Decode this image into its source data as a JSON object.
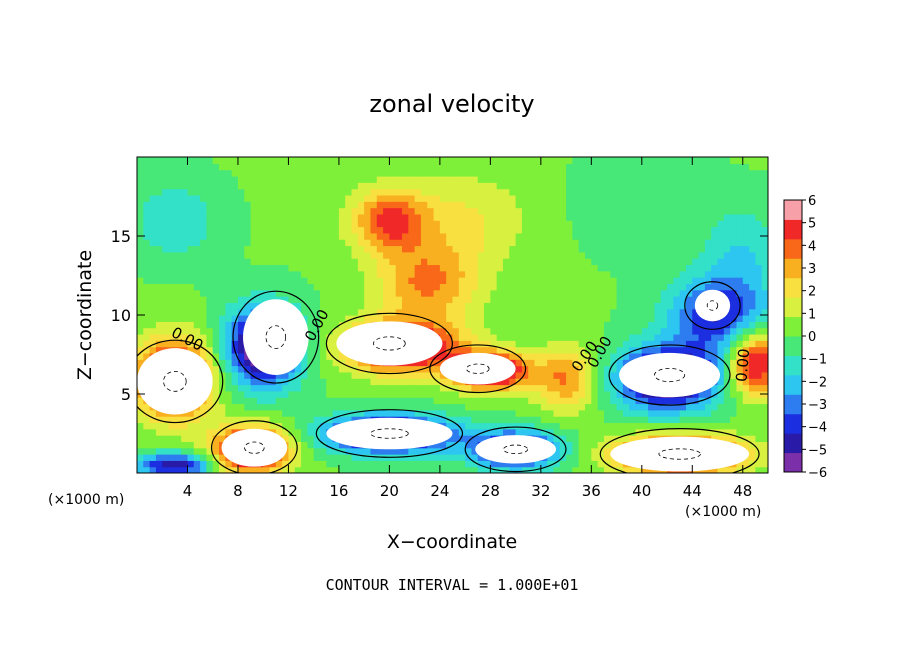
{
  "chart_data": {
    "type": "heatmap",
    "title": "zonal velocity",
    "xlabel": "X−coordinate",
    "ylabel": "Z−coordinate",
    "x_unit": "(×1000 m)",
    "z_unit": "(×1000 m)",
    "xlim": [
      0,
      50
    ],
    "ylim": [
      0,
      20
    ],
    "x_ticks": [
      4,
      8,
      12,
      16,
      20,
      24,
      28,
      32,
      36,
      40,
      44,
      48
    ],
    "y_ticks": [
      5,
      10,
      15
    ],
    "colorbar": {
      "ticks": [
        6,
        5,
        4,
        3,
        2,
        1,
        0,
        -1,
        -2,
        -3,
        -4,
        -5,
        -6
      ],
      "range": [
        -6,
        6
      ]
    },
    "contour_labels": [
      "0.00",
      "0.00",
      "0.00",
      "0.00",
      "0.00"
    ],
    "footer": "CONTOUR INTERVAL = 1.000E+01",
    "field_blobs": [
      {
        "x": 20,
        "z": 16,
        "v": 5,
        "sx": 3.0,
        "sz": 2.0
      },
      {
        "x": 23,
        "z": 12,
        "v": 4,
        "sx": 4.0,
        "sz": 2.5
      },
      {
        "x": 26,
        "z": 16,
        "v": 2,
        "sx": 5.0,
        "sz": 3.0
      },
      {
        "x": 3,
        "z": 16,
        "v": -2,
        "sx": 3.5,
        "sz": 2.5
      },
      {
        "x": 40,
        "z": 17,
        "v": -1,
        "sx": 5.0,
        "sz": 3.0
      },
      {
        "x": 46,
        "z": 10,
        "v": -5,
        "sx": 4.0,
        "sz": 2.5
      },
      {
        "x": 48,
        "z": 14,
        "v": -2,
        "sx": 3.0,
        "sz": 3.0
      },
      {
        "x": 10,
        "z": 8,
        "v": -8,
        "sx": 3.0,
        "sz": 2.5
      },
      {
        "x": 3,
        "z": 6,
        "v": 8,
        "sx": 3.0,
        "sz": 2.5
      },
      {
        "x": 21,
        "z": 8,
        "v": 8,
        "sx": 4.5,
        "sz": 1.6
      },
      {
        "x": 28,
        "z": 6.5,
        "v": 8,
        "sx": 3.0,
        "sz": 1.2
      },
      {
        "x": 34,
        "z": 6,
        "v": 4,
        "sx": 2.5,
        "sz": 2.0
      },
      {
        "x": 42,
        "z": 6,
        "v": -8,
        "sx": 4.0,
        "sz": 2.0
      },
      {
        "x": 49,
        "z": 7,
        "v": 7,
        "sx": 2.0,
        "sz": 2.0
      },
      {
        "x": 20,
        "z": 2.5,
        "v": -8,
        "sx": 5.0,
        "sz": 1.2
      },
      {
        "x": 30,
        "z": 1.5,
        "v": -7,
        "sx": 3.5,
        "sz": 1.2
      },
      {
        "x": 9,
        "z": 1.5,
        "v": 8,
        "sx": 3.0,
        "sz": 1.5
      },
      {
        "x": 43,
        "z": 1.2,
        "v": 8,
        "sx": 5.0,
        "sz": 1.2
      },
      {
        "x": 3,
        "z": 0.5,
        "v": -6,
        "sx": 3.0,
        "sz": 0.8
      }
    ],
    "nan_regions": [
      {
        "cx": 11,
        "cz": 8.6,
        "rx": 2.6,
        "rz": 2.4
      },
      {
        "cx": 3,
        "cz": 5.8,
        "rx": 3.0,
        "rz": 2.1
      },
      {
        "cx": 20,
        "cz": 8.2,
        "rx": 4.2,
        "rz": 1.4
      },
      {
        "cx": 27,
        "cz": 6.6,
        "rx": 3.0,
        "rz": 1.0
      },
      {
        "cx": 42.2,
        "cz": 6.2,
        "rx": 4.0,
        "rz": 1.4
      },
      {
        "cx": 45.6,
        "cz": 10.6,
        "rx": 1.4,
        "rz": 1.0
      },
      {
        "cx": 20,
        "cz": 2.5,
        "rx": 5.0,
        "rz": 1.0
      },
      {
        "cx": 30,
        "cz": 1.5,
        "rx": 3.2,
        "rz": 0.9
      },
      {
        "cx": 9.3,
        "cz": 1.6,
        "rx": 2.6,
        "rz": 1.2
      },
      {
        "cx": 43,
        "cz": 1.2,
        "rx": 5.5,
        "rz": 1.1
      }
    ]
  }
}
